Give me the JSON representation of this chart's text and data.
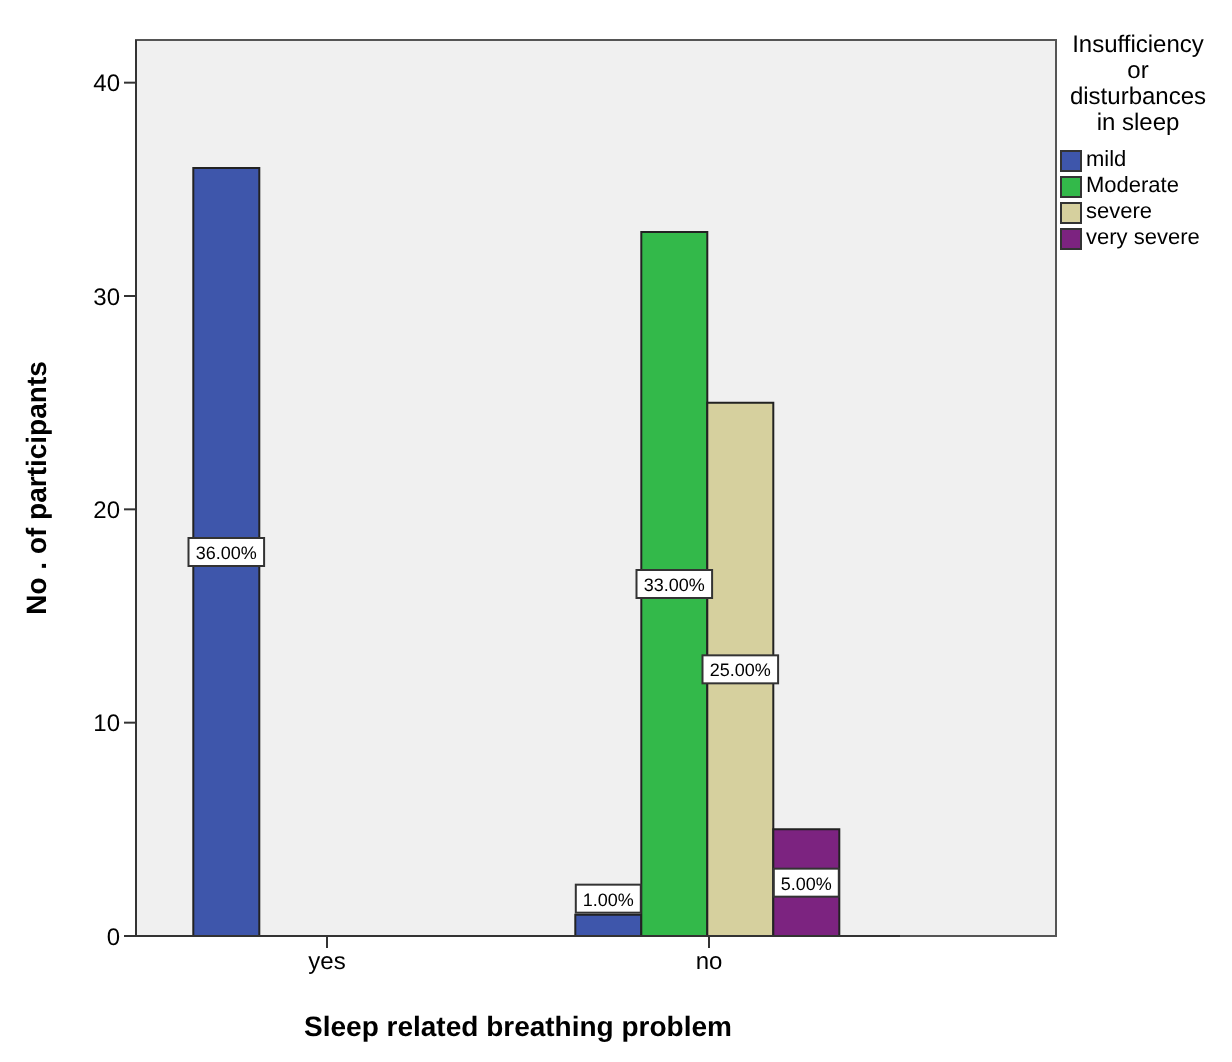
{
  "chart_data": {
    "type": "bar",
    "xlabel": "Sleep related breathing problem",
    "ylabel": "No . of participants",
    "legend_title": "Insufficiency or disturbances in sleep",
    "categories": [
      "yes",
      "no"
    ],
    "series": [
      {
        "name": "mild",
        "color": "#3e56ab",
        "values": [
          36,
          1
        ],
        "value_labels": [
          "36.00%",
          "1.00%"
        ]
      },
      {
        "name": "Moderate",
        "color": "#33b94a",
        "values": [
          null,
          33
        ],
        "value_labels": [
          null,
          "33.00%"
        ]
      },
      {
        "name": "severe",
        "color": "#d6d09e",
        "values": [
          null,
          25
        ],
        "value_labels": [
          null,
          "25.00%"
        ]
      },
      {
        "name": "very severe",
        "color": "#7c2380",
        "values": [
          null,
          5
        ],
        "value_labels": [
          null,
          "5.00%"
        ]
      }
    ],
    "ylim": [
      0,
      42
    ],
    "yticks": [
      0,
      10,
      20,
      30,
      40
    ],
    "legend": "top right"
  }
}
